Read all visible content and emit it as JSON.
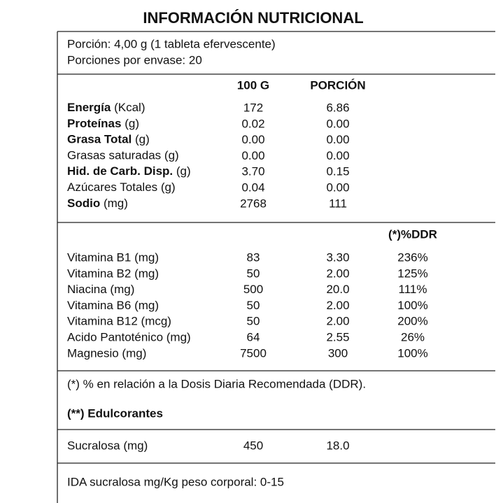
{
  "title": "INFORMACIÓN NUTRICIONAL",
  "serving": [
    "Porción: 4,00 g (1 tableta efervescente)",
    "Porciones por envase: 20"
  ],
  "headers": [
    "100 G",
    "PORCIÓN"
  ],
  "nutrients": [
    {
      "name": "Energía",
      "unit": "(Kcal)",
      "bold": true,
      "per100": "172",
      "portion": "6.86"
    },
    {
      "name": "Proteínas",
      "unit": "(g)",
      "bold": true,
      "per100": "0.02",
      "portion": "0.00"
    },
    {
      "name": "Grasa Total",
      "unit": "(g)",
      "bold": true,
      "per100": "0.00",
      "portion": "0.00"
    },
    {
      "name": "Grasas saturadas",
      "unit": "(g)",
      "bold": false,
      "per100": "0.00",
      "portion": "0.00"
    },
    {
      "name": "Hid. de Carb. Disp.",
      "unit": "(g)",
      "bold": true,
      "per100": "3.70",
      "portion": "0.15"
    },
    {
      "name": "Azúcares Totales",
      "unit": "(g)",
      "bold": false,
      "per100": "0.04",
      "portion": "0.00"
    },
    {
      "name": "Sodio",
      "unit": "(mg)",
      "bold": true,
      "per100": "2768",
      "portion": "111"
    }
  ],
  "ddr_header": "(*)%DDR",
  "vitamins": [
    {
      "name": "Vitamina B1 (mg)",
      "per100": "83",
      "portion": "3.30",
      "ddr": "236%"
    },
    {
      "name": "Vitamina B2 (mg)",
      "per100": "50",
      "portion": "2.00",
      "ddr": "125%"
    },
    {
      "name": "Niacina (mg)",
      "per100": "500",
      "portion": "20.0",
      "ddr": "111%"
    },
    {
      "name": "Vitamina B6 (mg)",
      "per100": "50",
      "portion": "2.00",
      "ddr": "100%"
    },
    {
      "name": "Vitamina B12 (mcg)",
      "per100": "50",
      "portion": "2.00",
      "ddr": "200%"
    },
    {
      "name": "Acido Pantoténico (mg)",
      "per100": "64",
      "portion": "2.55",
      "ddr": "26%"
    },
    {
      "name": "Magnesio (mg)",
      "per100": "7500",
      "portion": "300",
      "ddr": "100%"
    }
  ],
  "footnote": "(*) % en relación a la Dosis Diaria Recomendada (DDR).",
  "sweeteners_title": "(**) Edulcorantes",
  "sweeteners": [
    {
      "name": "Sucralosa (mg)",
      "per100": "450",
      "portion": "18.0"
    }
  ],
  "ida": "IDA sucralosa mg/Kg peso corporal: 0-15"
}
